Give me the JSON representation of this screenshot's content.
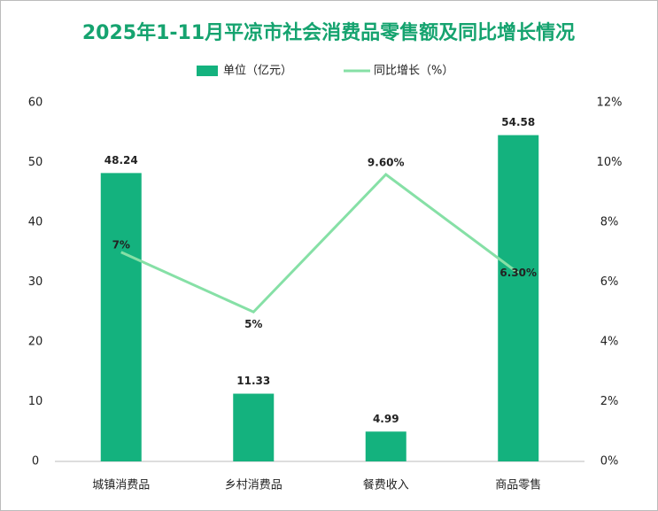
{
  "chart_data": {
    "type": "bar_line",
    "title": "2025年1-11月平凉市社会消费品零售额及同比增长情况",
    "categories": [
      "城镇消费品",
      "乡村消费品",
      "餐费收入",
      "商品零售"
    ],
    "series": [
      {
        "name": "单位（亿元）",
        "type": "bar",
        "color": "#14b27e",
        "values": [
          48.24,
          11.33,
          4.99,
          54.58
        ]
      },
      {
        "name": "同比增长（%）",
        "type": "line",
        "axis": "y2",
        "color": "#86e0a6",
        "values": [
          7,
          5,
          9.6,
          6.3
        ],
        "value_labels": [
          "7%",
          "5%",
          "9.60%",
          "6.30%"
        ]
      }
    ],
    "ylim": [
      0,
      60
    ],
    "yticks": [
      0,
      10,
      20,
      30,
      40,
      50,
      60
    ],
    "y2lim": [
      0,
      12
    ],
    "y2ticks": [
      {
        "value": 0,
        "label": "0%"
      },
      {
        "value": 2,
        "label": "2%"
      },
      {
        "value": 4,
        "label": "4%"
      },
      {
        "value": 6,
        "label": "6%"
      },
      {
        "value": 8,
        "label": "8%"
      },
      {
        "value": 10,
        "label": "10%"
      },
      {
        "value": 12,
        "label": "12%"
      }
    ],
    "grid": false
  }
}
